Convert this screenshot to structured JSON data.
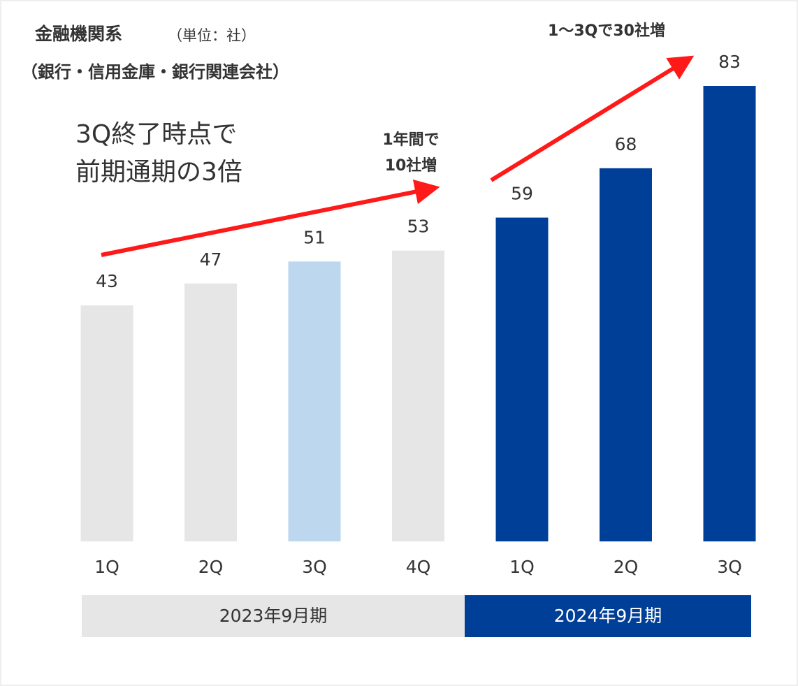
{
  "chart_data": {
    "type": "bar",
    "title": "金融機関系",
    "subtitle": "（単位：社）",
    "subtitle2": "（銀行・信用金庫・銀行関連会社）",
    "categories": [
      "1Q",
      "2Q",
      "3Q",
      "4Q",
      "1Q",
      "2Q",
      "3Q"
    ],
    "values": [
      43,
      47,
      51,
      53,
      59,
      68,
      83
    ],
    "colors": [
      "#e6e6e6",
      "#e6e6e6",
      "#bdd7ee",
      "#e6e6e6",
      "#003f98",
      "#003f98",
      "#003f98"
    ],
    "groups": [
      {
        "label": "2023年9月期",
        "color": "#e6e6e6"
      },
      {
        "label": "2024年9月期",
        "color": "#003f98"
      }
    ],
    "annotations": [
      [
        "3Q終了時点で",
        "前期通期の3倍"
      ],
      [
        "1年間で",
        "10社増"
      ],
      [
        "1～3Qで30社増"
      ]
    ]
  }
}
